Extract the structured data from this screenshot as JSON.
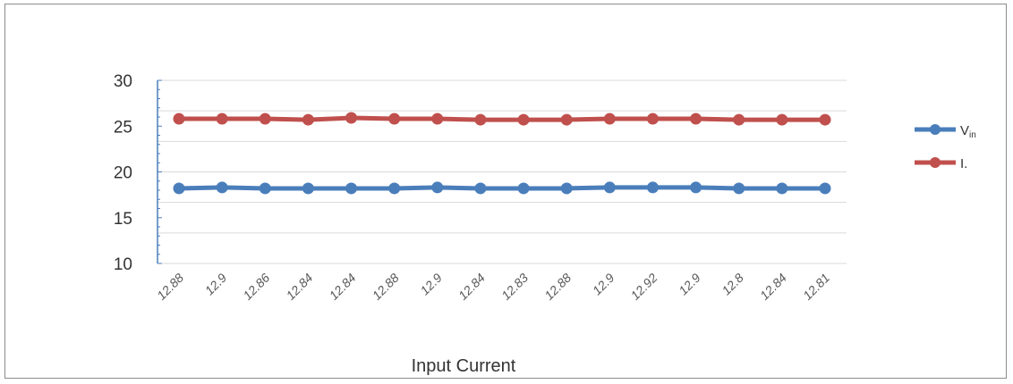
{
  "chart_data": {
    "type": "line",
    "title": "",
    "xlabel": "Input Current",
    "ylabel": "",
    "ylim": [
      10,
      30
    ],
    "yticks": [
      "10",
      "15",
      "20",
      "25",
      "30"
    ],
    "categories": [
      "12.88",
      "12.9",
      "12.86",
      "12.84",
      "12.84",
      "12.88",
      "12.9",
      "12.84",
      "12.83",
      "12.88",
      "12.9",
      "12.92",
      "12.9",
      "12.8",
      "12.84",
      "12.81"
    ],
    "series": [
      {
        "name": "Vin",
        "legend_main": "V",
        "legend_sub": "in",
        "color": "#4a7ebb",
        "values": [
          18.2,
          18.3,
          18.2,
          18.2,
          18.2,
          18.2,
          18.3,
          18.2,
          18.2,
          18.2,
          18.3,
          18.3,
          18.3,
          18.2,
          18.2,
          18.2
        ]
      },
      {
        "name": "I.",
        "legend_main": "I.",
        "legend_sub": "",
        "color": "#c0504d",
        "values": [
          25.8,
          25.8,
          25.8,
          25.7,
          25.9,
          25.8,
          25.8,
          25.7,
          25.7,
          25.7,
          25.8,
          25.8,
          25.8,
          25.7,
          25.7,
          25.7
        ]
      }
    ],
    "grid": true,
    "legend_position": "right"
  }
}
